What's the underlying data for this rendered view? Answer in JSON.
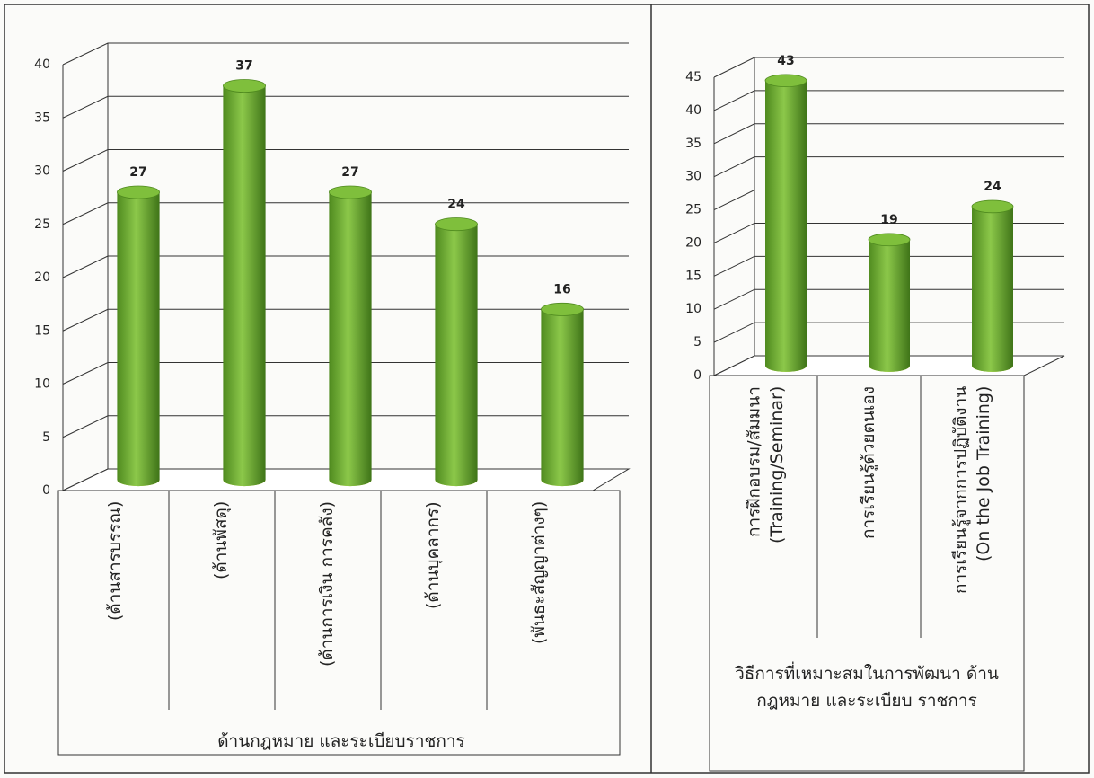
{
  "chart_data": [
    {
      "type": "bar",
      "x_label": "ด้านกฎหมาย และระเบียบราชการ",
      "categories": [
        "(ด้านสารบรรณ)",
        "(ด้านพัสดุ)",
        "(ด้านการเงิน การคลัง)",
        "(ด้านบุคลากร)",
        "(พันธะสัญญาต่างๆ)"
      ],
      "values": [
        27,
        37,
        27,
        24,
        16
      ],
      "color": "#6aaa2e",
      "ylim": [
        0,
        40
      ],
      "yticks": [
        0,
        5,
        10,
        15,
        20,
        25,
        30,
        35,
        40
      ],
      "grid": true
    },
    {
      "type": "bar",
      "x_label": "วิธีการที่เหมาะสมในการพัฒนา ด้านกฎหมาย และระเบียบ ราชการ",
      "categories": [
        "การฝึกอบรม/สัมมนา\n(Training/Seminar)",
        "การเรียนรู้ด้วยตนเอง",
        "การเรียนรู้จากการปฏิบัติงาน\n(On the Job Training)"
      ],
      "values": [
        43,
        19,
        24
      ],
      "color": "#6aaa2e",
      "ylim": [
        0,
        45
      ],
      "yticks": [
        0,
        5,
        10,
        15,
        20,
        25,
        30,
        35,
        40,
        45
      ],
      "grid": true
    }
  ]
}
